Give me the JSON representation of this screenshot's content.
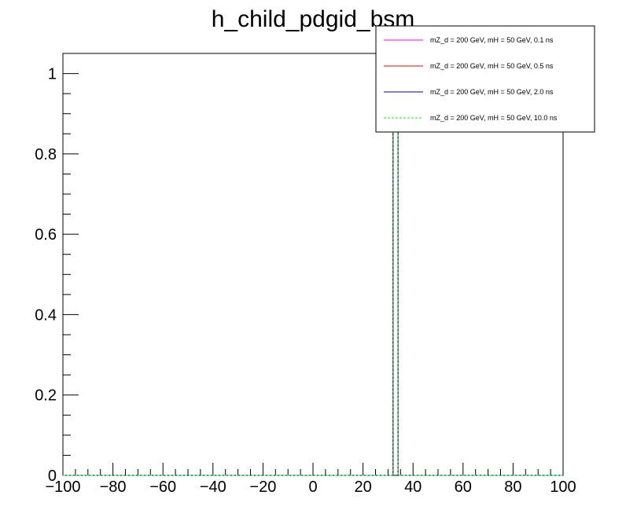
{
  "chart_data": {
    "type": "line",
    "title": "h_child_pdgid_bsm",
    "xlabel": "",
    "ylabel": "",
    "xlim": [
      -100,
      100
    ],
    "ylim": [
      0,
      1.05
    ],
    "x_ticks": [
      -100,
      -80,
      -60,
      -40,
      -20,
      0,
      20,
      40,
      60,
      80,
      100
    ],
    "x_tick_labels": [
      "−100",
      "−80",
      "−60",
      "−40",
      "−20",
      "0",
      "20",
      "40",
      "60",
      "80",
      "100"
    ],
    "y_ticks": [
      0,
      0.2,
      0.4,
      0.6,
      0.8,
      1
    ],
    "y_tick_labels": [
      "0",
      "0.2",
      "0.4",
      "0.6",
      "0.8",
      "1"
    ],
    "bin_width": 2,
    "series": [
      {
        "name": "mZ_d = 200 GeV, mH = 50 GeV, 0.1 ns",
        "color": "#ff00ff",
        "style": "solid",
        "bins": [
          {
            "x_low": 32,
            "x_high": 34,
            "value": 1.0
          }
        ]
      },
      {
        "name": "mZ_d = 200 GeV, mH = 50 GeV, 0.5 ns",
        "color": "#ff0000",
        "style": "solid",
        "bins": [
          {
            "x_low": 32,
            "x_high": 34,
            "value": 1.0
          }
        ]
      },
      {
        "name": "mZ_d = 200 GeV, mH = 50 GeV, 2.0 ns",
        "color": "#000099",
        "style": "solid",
        "bins": [
          {
            "x_low": 32,
            "x_high": 34,
            "value": 1.0
          }
        ]
      },
      {
        "name": "mZ_d = 200 GeV, mH = 50 GeV, 10.0 ns",
        "color": "#00ff00",
        "style": "dashed",
        "bins": [
          {
            "x_low": 32,
            "x_high": 34,
            "value": 1.0
          }
        ]
      }
    ],
    "legend_position": "top-right",
    "grid": false
  }
}
